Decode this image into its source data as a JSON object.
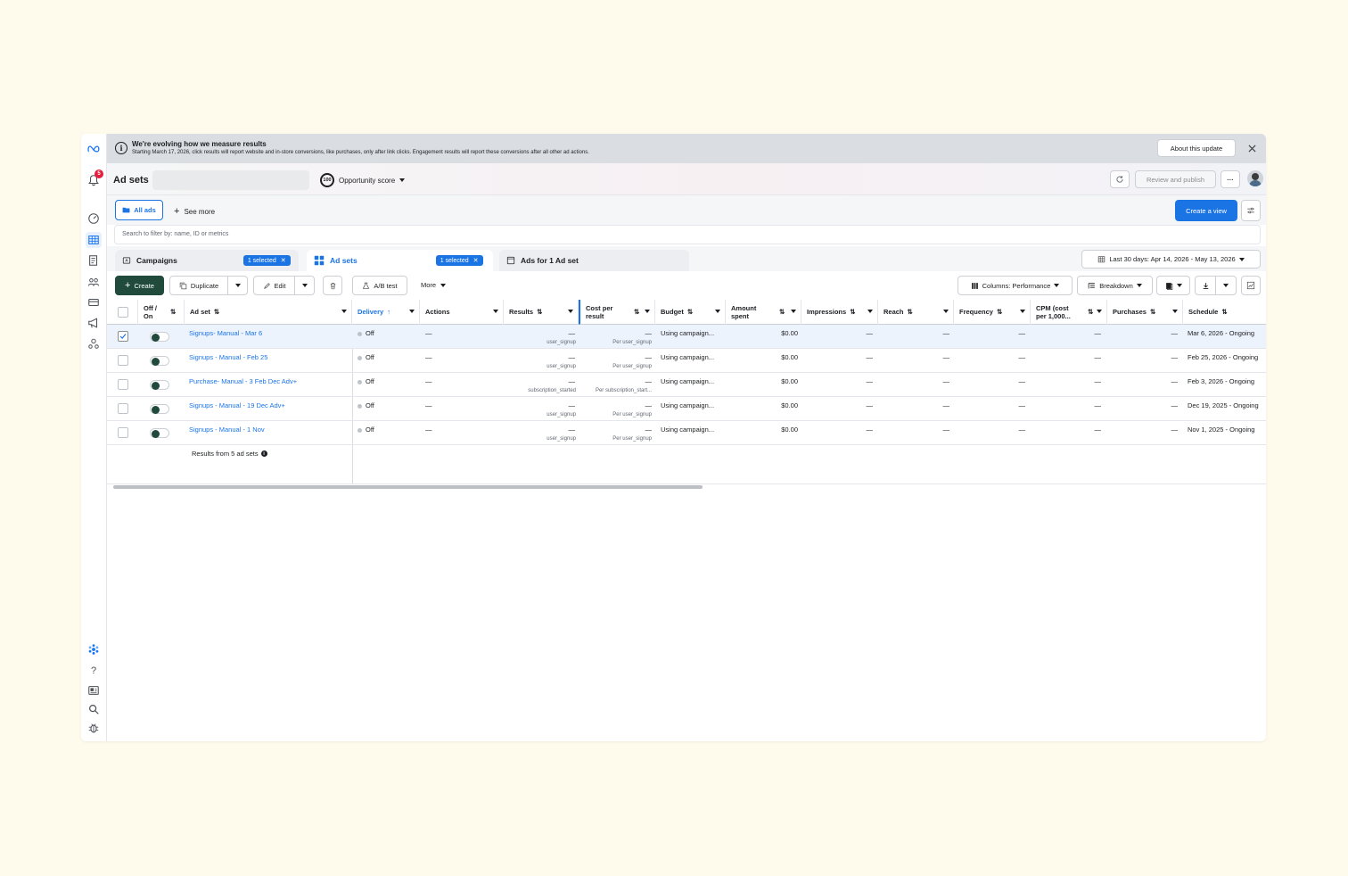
{
  "colors": {
    "accent": "#1b74e4",
    "create_green": "#1f4a3c",
    "background": "#fefbec",
    "badge_red": "#e41e3f"
  },
  "rail": {
    "notification_count": "5",
    "icons": [
      "meta-logo-icon",
      "bell-icon",
      "gauge-icon",
      "table-icon",
      "pages-icon",
      "audience-icon",
      "billing-icon",
      "megaphone-icon",
      "accounts-icon",
      "settings-gear-icon",
      "help-icon",
      "news-icon",
      "search-icon",
      "bug-icon"
    ]
  },
  "banner": {
    "title": "We're evolving how we measure results",
    "text": "Starting March 17, 2026, click results will report website and in-store conversions, like purchases, only after link clicks. Engagement results will report these conversions after all other ad actions.",
    "about_button": "About this update",
    "close_icon": "close-icon"
  },
  "header": {
    "title": "Ad sets",
    "opportunity_score_value": "100",
    "opportunity_score_label": "Opportunity score",
    "review_publish": "Review and publish",
    "more_label": "···"
  },
  "views": {
    "all_ads": "All ads",
    "see_more": "See more",
    "create_view": "Create a view"
  },
  "search": {
    "placeholder": "Search to filter by: name, ID or metrics"
  },
  "tabs": {
    "campaigns": {
      "label": "Campaigns",
      "chip": "1 selected"
    },
    "adsets": {
      "label": "Ad sets",
      "chip": "1 selected"
    },
    "ads": {
      "label": "Ads for 1 Ad set"
    },
    "date_range": "Last 30 days: Apr 14, 2026 - May 13, 2026"
  },
  "actions": {
    "create": "Create",
    "duplicate": "Duplicate",
    "edit": "Edit",
    "ab_test": "A/B test",
    "more": "More",
    "columns": "Columns: Performance",
    "breakdown": "Breakdown"
  },
  "table": {
    "headers": {
      "offon": "Off / On",
      "adset": "Ad set",
      "delivery": "Delivery",
      "actions": "Actions",
      "results": "Results",
      "cost_per_result": "Cost per result",
      "budget": "Budget",
      "amount_spent": "Amount spent",
      "impressions": "Impressions",
      "reach": "Reach",
      "frequency": "Frequency",
      "cpm": "CPM (cost per 1,000...",
      "purchases": "Purchases",
      "schedule": "Schedule"
    },
    "rows": [
      {
        "name": "Signups- Manual - Mar 6",
        "delivery": "Off",
        "actions": "—",
        "results": "—",
        "results_sub": "user_signup",
        "cpr": "—",
        "cpr_sub": "Per user_signup",
        "budget": "Using campaign...",
        "spent": "$0.00",
        "impressions": "—",
        "reach": "—",
        "frequency": "—",
        "cpm": "—",
        "purchases": "—",
        "schedule": "Mar 6, 2026 - Ongoing"
      },
      {
        "name": "Signups - Manual - Feb 25",
        "delivery": "Off",
        "actions": "—",
        "results": "—",
        "results_sub": "user_signup",
        "cpr": "—",
        "cpr_sub": "Per user_signup",
        "budget": "Using campaign...",
        "spent": "$0.00",
        "impressions": "—",
        "reach": "—",
        "frequency": "—",
        "cpm": "—",
        "purchases": "—",
        "schedule": "Feb 25, 2026 - Ongoing"
      },
      {
        "name": "Purchase- Manual - 3 Feb Dec Adv+",
        "delivery": "Off",
        "actions": "—",
        "results": "—",
        "results_sub": "subscription_started",
        "cpr": "—",
        "cpr_sub": "Per subscription_start...",
        "budget": "Using campaign...",
        "spent": "$0.00",
        "impressions": "—",
        "reach": "—",
        "frequency": "—",
        "cpm": "—",
        "purchases": "—",
        "schedule": "Feb 3, 2026 - Ongoing"
      },
      {
        "name": "Signups - Manual - 19 Dec Adv+",
        "delivery": "Off",
        "actions": "—",
        "results": "—",
        "results_sub": "user_signup",
        "cpr": "—",
        "cpr_sub": "Per user_signup",
        "budget": "Using campaign...",
        "spent": "$0.00",
        "impressions": "—",
        "reach": "—",
        "frequency": "—",
        "cpm": "—",
        "purchases": "—",
        "schedule": "Dec 19, 2025 - Ongoing"
      },
      {
        "name": "Signups - Manual - 1 Nov",
        "delivery": "Off",
        "actions": "—",
        "results": "—",
        "results_sub": "user_signup",
        "cpr": "—",
        "cpr_sub": "Per user_signup",
        "budget": "Using campaign...",
        "spent": "$0.00",
        "impressions": "—",
        "reach": "—",
        "frequency": "—",
        "cpm": "—",
        "purchases": "—",
        "schedule": "Nov 1, 2025 - Ongoing"
      }
    ],
    "summary": "Results from 5 ad sets"
  }
}
